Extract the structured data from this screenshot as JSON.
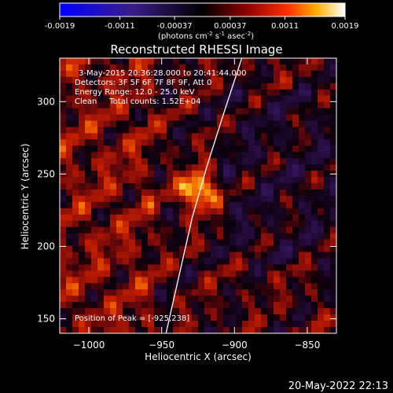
{
  "chart_data": {
    "type": "heatmap",
    "title": "Reconstructed RHESSI Image",
    "colorbar": {
      "ticks": [
        "-0.0019",
        "-0.0011",
        "-0.00037",
        "0.00037",
        "0.0011",
        "0.0019"
      ],
      "tick_values": [
        -0.0019,
        -0.0011,
        -0.00037,
        0.00037,
        0.0011,
        0.0019
      ],
      "range": [
        -0.0019,
        0.0019
      ],
      "unit_prefix": "(photons cm",
      "exp1": "-2",
      "mid1": " s",
      "exp2": "-1",
      "mid2": " asec",
      "exp3": "-2",
      "unit_suffix": ")"
    },
    "xlabel": "Heliocentric X (arcsec)",
    "ylabel": "Heliocentric Y (arcsec)",
    "xlim": [
      -1020,
      -830
    ],
    "ylim": [
      140,
      330
    ],
    "xticks": [
      -1000,
      -950,
      -900,
      -850
    ],
    "xtick_labels": [
      "−1000",
      "−950",
      "−900",
      "−850"
    ],
    "yticks": [
      150,
      200,
      250,
      300
    ],
    "ytick_labels": [
      "150",
      "200",
      "250",
      "300"
    ],
    "annotations": [
      "3-May-2015 20:36:28.000 to 20:41:44.000",
      "Detectors: 3F 5F 6F 7F 8F 9F, Att 0",
      "Energy Range: 12.0 - 25.0 keV",
      "Clean     Total counts: 1.52E+04"
    ],
    "peak_label": "Position of Peak = [-925,238]",
    "peak": [
      -925,
      238
    ],
    "limb_curve": [
      [
        -947,
        140
      ],
      [
        -938,
        180
      ],
      [
        -929,
        220
      ],
      [
        -919,
        255
      ],
      [
        -908,
        290
      ],
      [
        -895,
        330
      ]
    ],
    "colormap": "black-purple-red-yellow-white",
    "grid": false
  },
  "footer": {
    "timestamp": "20-May-2022 22:13"
  }
}
